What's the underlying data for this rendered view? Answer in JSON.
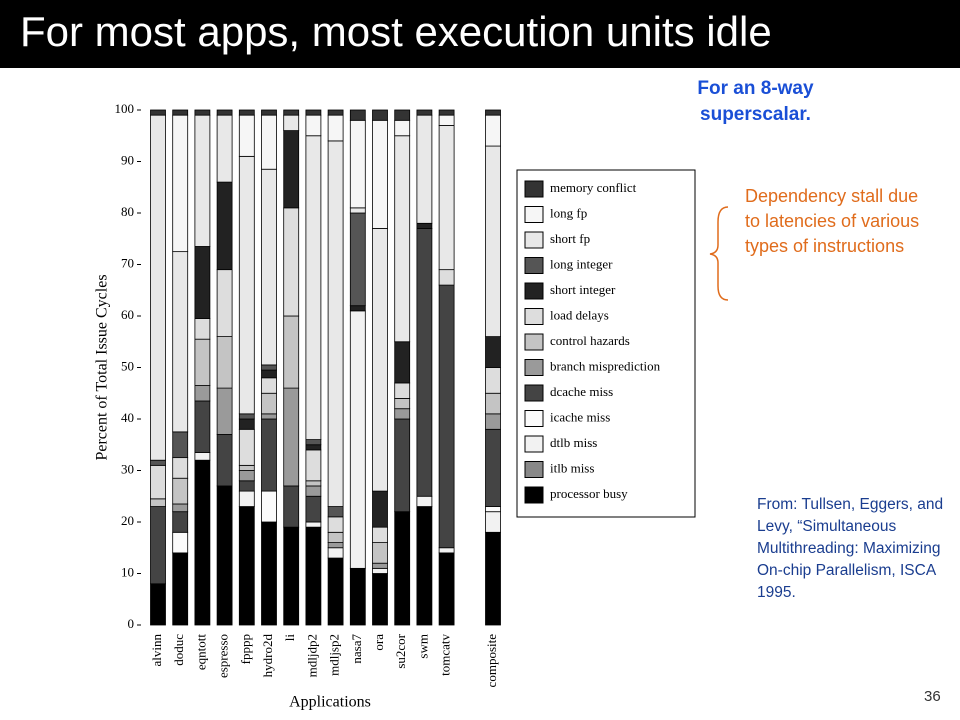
{
  "slide_title": "For most apps, most execution units idle",
  "note_superscalar": "For an 8-way superscalar.",
  "note_dependency": "Dependency stall due to latencies of various types of instructions",
  "citation": "From: Tullsen, Eggers, and Levy, “Simultaneous Multithreading: Maximizing On-chip Parallelism, ISCA 1995.",
  "page_number": "36",
  "chart_data": {
    "type": "stacked-bar",
    "xlabel": "Applications",
    "ylabel": "Percent of Total Issue Cycles",
    "categories": [
      "alvinn",
      "doduc",
      "eqntott",
      "espresso",
      "fpppp",
      "hydro2d",
      "li",
      "mdljdp2",
      "mdljsp2",
      "nasa7",
      "ora",
      "su2cor",
      "swm",
      "tomcatv",
      "composite"
    ],
    "ylim": [
      0,
      100
    ],
    "yticks": [
      0,
      10,
      20,
      30,
      40,
      50,
      60,
      70,
      80,
      90,
      100
    ],
    "series": [
      {
        "name": "processor busy",
        "color": "#000000",
        "values": [
          8,
          14,
          32,
          27,
          23,
          20,
          19,
          19,
          13,
          11,
          10,
          22,
          23,
          14,
          18
        ]
      },
      {
        "name": "itlb miss",
        "color": "#888888",
        "values": [
          0,
          0,
          0,
          0,
          0,
          0,
          0,
          0,
          0,
          0,
          0,
          0,
          0,
          0,
          0
        ]
      },
      {
        "name": "dtlb miss",
        "color": "#f2f2f2",
        "values": [
          0,
          0,
          1.5,
          0,
          3,
          0,
          0,
          1,
          2,
          50,
          1,
          0,
          2,
          1,
          4
        ]
      },
      {
        "name": "icache miss",
        "color": "#fbfbfb",
        "values": [
          0,
          4,
          0,
          0,
          0,
          6,
          0,
          0,
          0,
          0,
          0,
          0,
          0,
          0,
          1
        ]
      },
      {
        "name": "dcache miss",
        "color": "#444444",
        "values": [
          15,
          4,
          10,
          10,
          2,
          14,
          8,
          5,
          0,
          0,
          0,
          18,
          52,
          51,
          15
        ]
      },
      {
        "name": "branch misprediction",
        "color": "#9a9a9a",
        "values": [
          0,
          1.5,
          3,
          9,
          2,
          1,
          19,
          2,
          1,
          0,
          1,
          2,
          0,
          0,
          3
        ]
      },
      {
        "name": "control hazards",
        "color": "#c4c4c4",
        "values": [
          1.5,
          5,
          9,
          10,
          1,
          4,
          14,
          1,
          2,
          0,
          4,
          2,
          0,
          0,
          4
        ]
      },
      {
        "name": "load delays",
        "color": "#dddddd",
        "values": [
          6.5,
          4,
          4,
          13,
          7,
          3,
          21,
          6,
          3,
          0,
          3,
          3,
          0,
          3,
          5
        ]
      },
      {
        "name": "short integer",
        "color": "#222222",
        "values": [
          0,
          0,
          14,
          17,
          2,
          1.5,
          15,
          1,
          0,
          1,
          7,
          8,
          1,
          0,
          6
        ]
      },
      {
        "name": "long integer",
        "color": "#555555",
        "values": [
          1,
          5,
          0,
          0,
          1,
          1,
          0,
          1,
          2,
          18,
          0,
          0,
          0,
          0,
          0
        ]
      },
      {
        "name": "short fp",
        "color": "#e8e8e8",
        "values": [
          67,
          35,
          25.5,
          13,
          50,
          38,
          3,
          59,
          71,
          1,
          51,
          40,
          21,
          28,
          37
        ]
      },
      {
        "name": "long fp",
        "color": "#f6f6f6",
        "values": [
          0,
          26.5,
          0,
          0,
          8,
          10.5,
          0,
          4,
          5,
          17,
          21,
          3,
          0,
          2,
          6
        ]
      },
      {
        "name": "memory conflict",
        "color": "#333333",
        "values": [
          1,
          1,
          1,
          1,
          1,
          1,
          1,
          1,
          1,
          2,
          2,
          2,
          1,
          1,
          1
        ]
      }
    ]
  }
}
